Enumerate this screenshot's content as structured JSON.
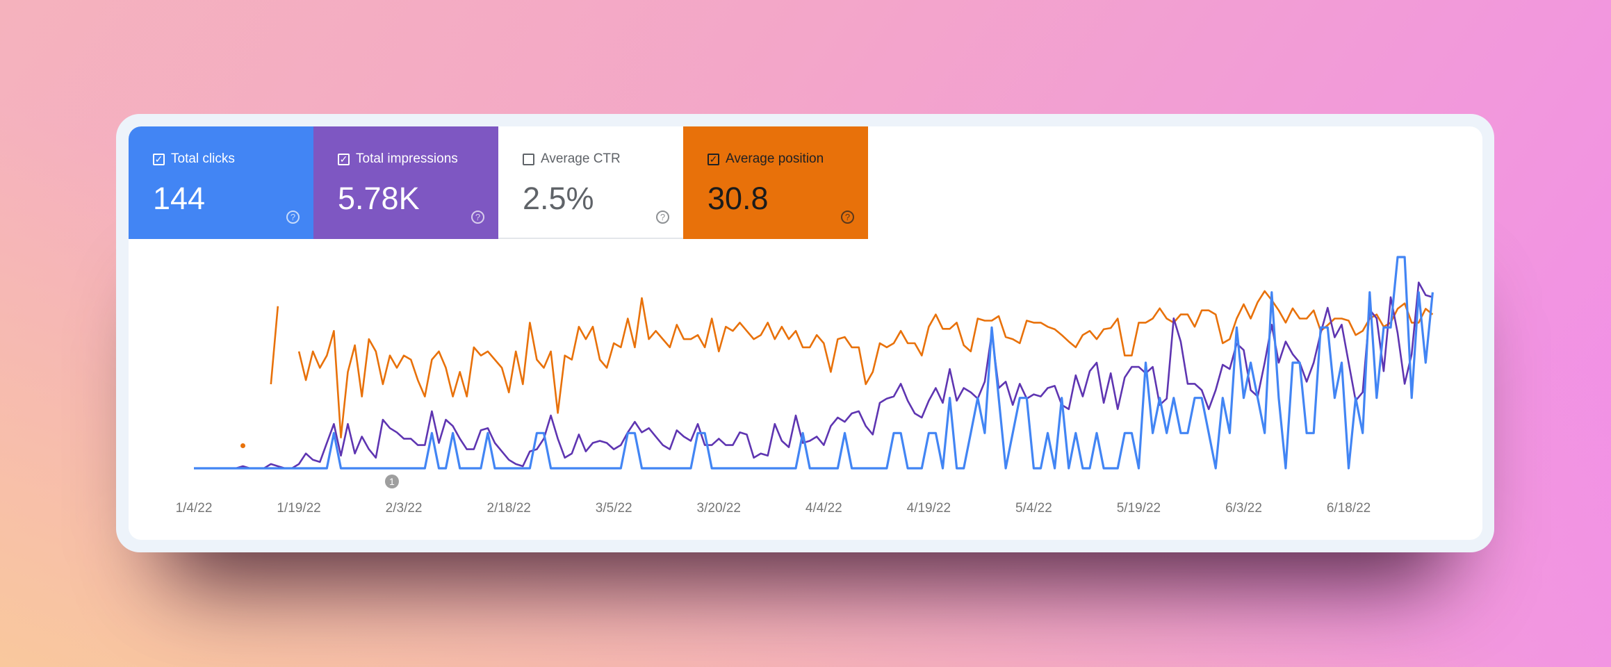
{
  "metrics": [
    {
      "label": "Total clicks",
      "value": "144",
      "checked": true,
      "color": "#4285f4"
    },
    {
      "label": "Total impressions",
      "value": "5.78K",
      "checked": true,
      "color": "#7e57c2"
    },
    {
      "label": "Average CTR",
      "value": "2.5%",
      "checked": false,
      "color": "#ffffff"
    },
    {
      "label": "Average position",
      "value": "30.8",
      "checked": true,
      "color": "#e8710a"
    }
  ],
  "icons": {
    "checkbox_checked": "✓",
    "help": "?"
  },
  "annotation": {
    "label": "1",
    "date": "2/1/22"
  },
  "chart_data": {
    "type": "line",
    "title": "",
    "xlabel": "",
    "ylabel": "",
    "grid": false,
    "x_tick_labels": [
      "1/4/22",
      "1/19/22",
      "2/3/22",
      "2/18/22",
      "3/5/22",
      "3/20/22",
      "4/4/22",
      "4/19/22",
      "5/4/22",
      "5/19/22",
      "6/3/22",
      "6/18/22"
    ],
    "x": [
      "1/4/22",
      "1/5/22",
      "1/6/22",
      "1/7/22",
      "1/8/22",
      "1/9/22",
      "1/10/22",
      "1/11/22",
      "1/12/22",
      "1/13/22",
      "1/14/22",
      "1/15/22",
      "1/16/22",
      "1/17/22",
      "1/18/22",
      "1/19/22",
      "1/20/22",
      "1/21/22",
      "1/22/22",
      "1/23/22",
      "1/24/22",
      "1/25/22",
      "1/26/22",
      "1/27/22",
      "1/28/22",
      "1/29/22",
      "1/30/22",
      "1/31/22",
      "2/1/22",
      "2/2/22",
      "2/3/22",
      "2/4/22",
      "2/5/22",
      "2/6/22",
      "2/7/22",
      "2/8/22",
      "2/9/22",
      "2/10/22",
      "2/11/22",
      "2/12/22",
      "2/13/22",
      "2/14/22",
      "2/15/22",
      "2/16/22",
      "2/17/22",
      "2/18/22",
      "2/19/22",
      "2/20/22",
      "2/21/22",
      "2/22/22",
      "2/23/22",
      "2/24/22",
      "2/25/22",
      "2/26/22",
      "2/27/22",
      "2/28/22",
      "3/1/22",
      "3/2/22",
      "3/3/22",
      "3/4/22",
      "3/5/22",
      "3/6/22",
      "3/7/22",
      "3/8/22",
      "3/9/22",
      "3/10/22",
      "3/11/22",
      "3/12/22",
      "3/13/22",
      "3/14/22",
      "3/15/22",
      "3/16/22",
      "3/17/22",
      "3/18/22",
      "3/19/22",
      "3/20/22",
      "3/21/22",
      "3/22/22",
      "3/23/22",
      "3/24/22",
      "3/25/22",
      "3/26/22",
      "3/27/22",
      "3/28/22",
      "3/29/22",
      "3/30/22",
      "3/31/22",
      "4/1/22",
      "4/2/22",
      "4/3/22",
      "4/4/22",
      "4/5/22",
      "4/6/22",
      "4/7/22",
      "4/8/22",
      "4/9/22",
      "4/10/22",
      "4/11/22",
      "4/12/22",
      "4/13/22",
      "4/14/22",
      "4/15/22",
      "4/16/22",
      "4/17/22",
      "4/18/22",
      "4/19/22",
      "4/20/22",
      "4/21/22",
      "4/22/22",
      "4/23/22",
      "4/24/22",
      "4/25/22",
      "4/26/22",
      "4/27/22",
      "4/28/22",
      "4/29/22",
      "4/30/22",
      "5/1/22",
      "5/2/22",
      "5/3/22",
      "5/4/22",
      "5/5/22",
      "5/6/22",
      "5/7/22",
      "5/8/22",
      "5/9/22",
      "5/10/22",
      "5/11/22",
      "5/12/22",
      "5/13/22",
      "5/14/22",
      "5/15/22",
      "5/16/22",
      "5/17/22",
      "5/18/22",
      "5/19/22",
      "5/20/22",
      "5/21/22",
      "5/22/22",
      "5/23/22",
      "5/24/22",
      "5/25/22",
      "5/26/22",
      "5/27/22",
      "5/28/22",
      "5/29/22",
      "5/30/22",
      "5/31/22",
      "6/1/22",
      "6/2/22",
      "6/3/22",
      "6/4/22",
      "6/5/22",
      "6/6/22",
      "6/7/22",
      "6/8/22",
      "6/9/22",
      "6/10/22",
      "6/11/22",
      "6/12/22",
      "6/13/22",
      "6/14/22",
      "6/15/22",
      "6/16/22",
      "6/17/22",
      "6/18/22",
      "6/19/22",
      "6/20/22",
      "6/21/22",
      "6/22/22",
      "6/23/22",
      "6/24/22",
      "6/25/22",
      "6/26/22",
      "6/27/22",
      "6/28/22",
      "6/29/22",
      "6/30/22"
    ],
    "series": [
      {
        "name": "Total clicks",
        "color": "#4285f4",
        "ylim": [
          0,
          6
        ],
        "reversed": false,
        "values": [
          0,
          0,
          0,
          0,
          0,
          0,
          0,
          0,
          0,
          0,
          0,
          0,
          0,
          0,
          0,
          0,
          0,
          0,
          0,
          0,
          1,
          0,
          0,
          0,
          0,
          0,
          0,
          0,
          0,
          0,
          0,
          0,
          0,
          0,
          1,
          0,
          0,
          1,
          0,
          0,
          0,
          0,
          1,
          0,
          0,
          0,
          0,
          0,
          0,
          1,
          1,
          0,
          0,
          0,
          0,
          0,
          0,
          0,
          0,
          0,
          0,
          0,
          1,
          1,
          0,
          0,
          0,
          0,
          0,
          0,
          0,
          0,
          1,
          1,
          0,
          0,
          0,
          0,
          0,
          0,
          0,
          0,
          0,
          0,
          0,
          0,
          0,
          1,
          0,
          0,
          0,
          0,
          0,
          1,
          0,
          0,
          0,
          0,
          0,
          0,
          1,
          1,
          0,
          0,
          0,
          1,
          1,
          0,
          2,
          0,
          0,
          1,
          2,
          1,
          4,
          2,
          0,
          1,
          2,
          2,
          0,
          0,
          1,
          0,
          2,
          0,
          1,
          0,
          0,
          1,
          0,
          0,
          0,
          1,
          1,
          0,
          3,
          1,
          2,
          1,
          2,
          1,
          1,
          2,
          2,
          1,
          0,
          2,
          1,
          4,
          2,
          3,
          2,
          1,
          5,
          2,
          0,
          3,
          3,
          1,
          1,
          4,
          4,
          2,
          3,
          0,
          2,
          1,
          5,
          2,
          4,
          4,
          6,
          6,
          2,
          5,
          3,
          5
        ]
      },
      {
        "name": "Total impressions",
        "color": "#5e35b1",
        "ylim": [
          0,
          100
        ],
        "reversed": false,
        "values": [
          0,
          0,
          0,
          0,
          0,
          0,
          0,
          1,
          0,
          0,
          0,
          2,
          1,
          0,
          0,
          2,
          7,
          4,
          3,
          12,
          21,
          6,
          21,
          7,
          15,
          9,
          5,
          23,
          19,
          17,
          14,
          14,
          11,
          11,
          27,
          12,
          23,
          20,
          14,
          9,
          9,
          18,
          19,
          12,
          8,
          4,
          2,
          1,
          8,
          9,
          14,
          25,
          14,
          5,
          7,
          16,
          8,
          12,
          13,
          12,
          9,
          11,
          17,
          22,
          17,
          19,
          15,
          11,
          9,
          18,
          15,
          13,
          21,
          11,
          11,
          14,
          11,
          11,
          17,
          16,
          5,
          7,
          6,
          21,
          13,
          10,
          25,
          12,
          13,
          15,
          11,
          20,
          24,
          22,
          26,
          27,
          20,
          16,
          31,
          33,
          34,
          40,
          32,
          26,
          24,
          32,
          38,
          31,
          47,
          32,
          38,
          36,
          33,
          41,
          64,
          38,
          41,
          30,
          40,
          33,
          35,
          34,
          38,
          39,
          30,
          28,
          44,
          34,
          46,
          50,
          31,
          45,
          28,
          43,
          48,
          48,
          45,
          48,
          30,
          33,
          71,
          60,
          40,
          40,
          37,
          28,
          37,
          49,
          47,
          59,
          56,
          37,
          34,
          50,
          68,
          50,
          60,
          54,
          50,
          41,
          50,
          64,
          76,
          62,
          68,
          50,
          32,
          36,
          75,
          71,
          46,
          81,
          64,
          40,
          54,
          88,
          82,
          81
        ]
      },
      {
        "name": "Average position",
        "color": "#e8710a",
        "ylim": [
          10,
          61.5
        ],
        "reversed": true,
        "values": [
          null,
          null,
          null,
          null,
          null,
          null,
          null,
          56,
          null,
          null,
          null,
          41,
          22,
          null,
          null,
          33,
          40,
          33,
          37,
          34,
          28,
          54,
          38,
          31.5,
          44,
          30,
          33,
          41,
          34,
          37,
          34,
          35,
          40,
          44,
          35,
          33,
          37,
          44,
          38,
          44,
          32,
          34,
          33,
          35,
          37,
          43,
          33,
          41,
          26,
          35,
          37,
          33,
          48,
          34,
          35,
          27,
          30,
          27,
          35,
          37,
          31,
          32,
          25,
          32,
          20,
          30,
          28,
          30,
          32,
          26.5,
          30,
          30,
          29,
          32,
          25,
          33,
          27,
          28,
          26,
          28,
          30,
          29,
          26,
          30,
          27,
          30,
          28,
          32,
          32,
          29,
          31,
          38,
          30,
          29.5,
          32,
          32,
          41,
          38,
          31,
          32,
          31,
          28,
          31,
          31,
          34,
          27,
          24,
          27.5,
          27.5,
          26,
          31.5,
          33,
          25,
          25.5,
          25.5,
          24.4,
          29.5,
          30,
          31,
          25.5,
          26,
          26,
          27,
          27.6,
          29,
          30.6,
          32,
          29,
          28,
          30,
          27.6,
          27.3,
          25,
          34,
          34,
          26,
          26,
          25,
          22.5,
          25,
          26,
          24,
          24,
          27,
          23,
          23,
          24,
          31,
          30,
          25,
          21.5,
          25,
          21,
          18.3,
          20.5,
          23,
          26,
          22.5,
          25,
          25,
          23,
          28,
          26.6,
          25,
          25,
          25.5,
          29,
          28,
          25,
          24,
          27,
          26,
          22.6,
          21.3,
          26,
          26,
          22.6,
          24
        ]
      }
    ]
  }
}
